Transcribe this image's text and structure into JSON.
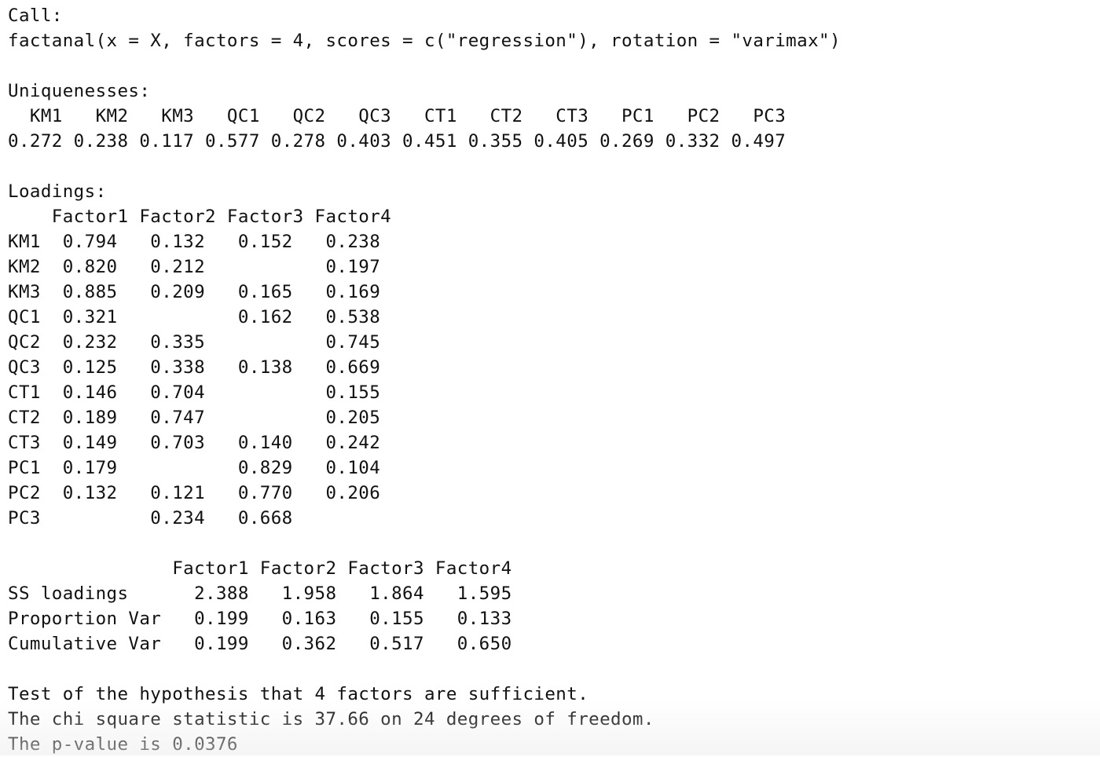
{
  "call": {
    "header": "Call:",
    "command": "factanal(x = X, factors = 4, scores = c(\"regression\"), rotation = \"varimax\")"
  },
  "uniquenesses": {
    "header": "Uniquenesses:",
    "names_line": "  KM1   KM2   KM3   QC1   QC2   QC3   CT1   CT2   CT3   PC1   PC2   PC3 ",
    "values_line": "0.272 0.238 0.117 0.577 0.278 0.403 0.451 0.355 0.405 0.269 0.332 0.497 "
  },
  "loadings": {
    "header": "Loadings:",
    "column_header_line": "    Factor1 Factor2 Factor3 Factor4",
    "rows": [
      "KM1  0.794   0.132   0.152   0.238 ",
      "KM2  0.820   0.212           0.197 ",
      "KM3  0.885   0.209   0.165   0.169 ",
      "QC1  0.321           0.162   0.538 ",
      "QC2  0.232   0.335           0.745 ",
      "QC3  0.125   0.338   0.138   0.669 ",
      "CT1  0.146   0.704           0.155 ",
      "CT2  0.189   0.747           0.205 ",
      "CT3  0.149   0.703   0.140   0.242 ",
      "PC1  0.179           0.829   0.104 ",
      "PC2  0.132   0.121   0.770   0.206 ",
      "PC3          0.234   0.668         "
    ]
  },
  "variance": {
    "column_header_line": "               Factor1 Factor2 Factor3 Factor4",
    "rows": [
      "SS loadings      2.388   1.958   1.864   1.595",
      "Proportion Var   0.199   0.163   0.155   0.133",
      "Cumulative Var   0.199   0.362   0.517   0.650"
    ]
  },
  "test": {
    "line1": "Test of the hypothesis that 4 factors are sufficient.",
    "line2": "The chi square statistic is 37.66 on 24 degrees of freedom.",
    "line3": "The p-value is 0.0376"
  }
}
